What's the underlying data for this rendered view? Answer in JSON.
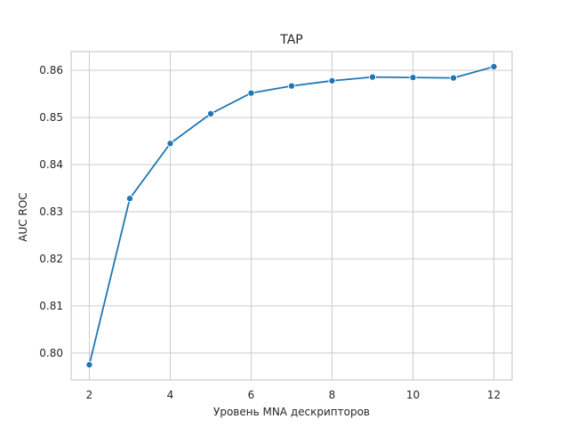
{
  "chart_data": {
    "type": "line",
    "title": "TAP",
    "xlabel": "Уровень MNA дескрипторов",
    "ylabel": "AUC ROC",
    "x": [
      2,
      3,
      4,
      5,
      6,
      7,
      8,
      9,
      10,
      11,
      12
    ],
    "series": [
      {
        "values": [
          0.7975,
          0.8328,
          0.8445,
          0.8508,
          0.8552,
          0.8567,
          0.8578,
          0.8586,
          0.8585,
          0.8584,
          0.8608
        ],
        "color": "#1f77b4",
        "marker": "circle"
      }
    ],
    "xticks": [
      2,
      4,
      6,
      8,
      10,
      12
    ],
    "xtick_labels": [
      "2",
      "4",
      "6",
      "8",
      "10",
      "12"
    ],
    "yticks": [
      0.8,
      0.81,
      0.82,
      0.83,
      0.84,
      0.85,
      0.86
    ],
    "ytick_labels": [
      "0.80",
      "0.81",
      "0.82",
      "0.83",
      "0.84",
      "0.85",
      "0.86"
    ],
    "xlim": [
      1.55,
      12.45
    ],
    "ylim": [
      0.7943,
      0.864
    ],
    "grid": true,
    "legend": "none"
  }
}
